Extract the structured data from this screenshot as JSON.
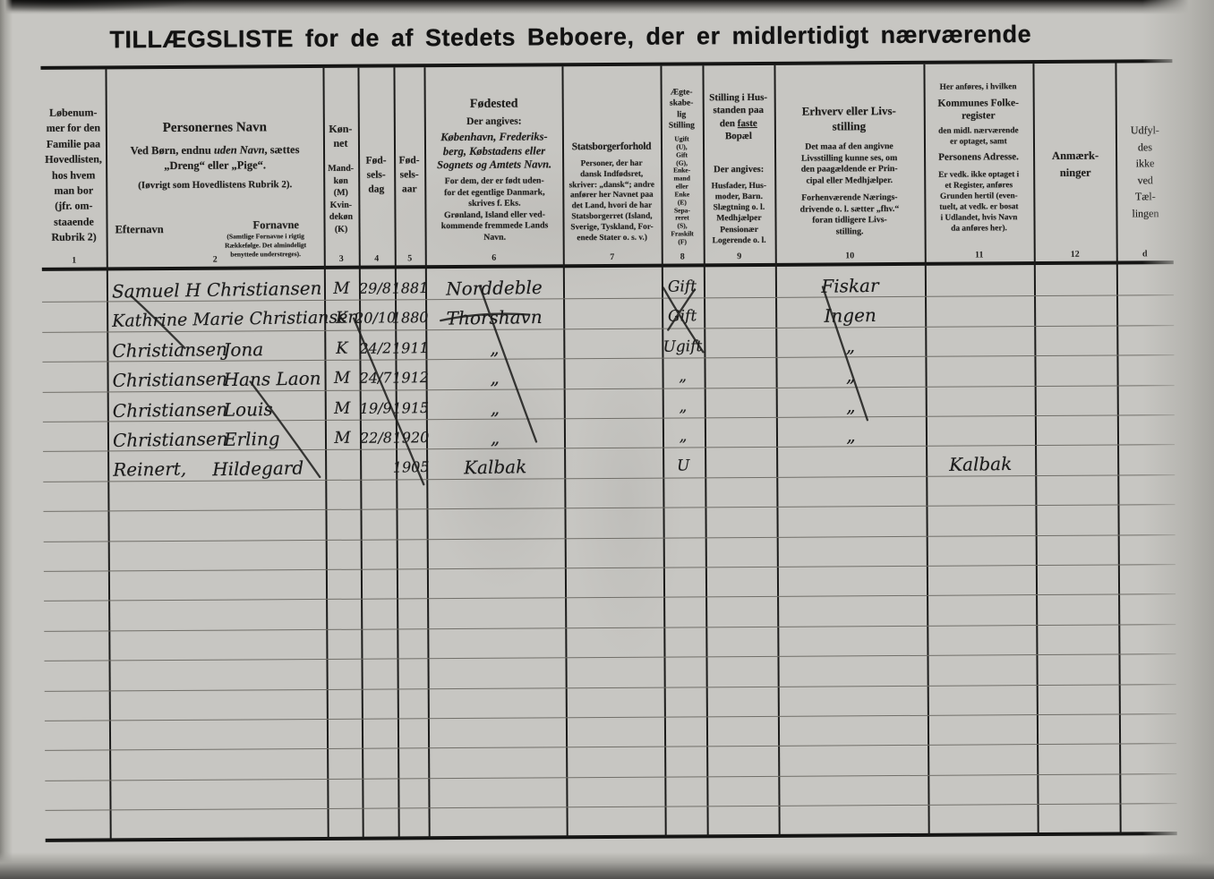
{
  "title": "TILLÆGSLISTE for de af Stedets Beboere, der er midlertidigt nærværende",
  "colors": {
    "paper": "#c7c6c2",
    "ink": "#1c1c1c",
    "line": "#151514"
  },
  "header": {
    "c1": {
      "num": "1",
      "text": "Løbenum-\nmer for den\nFamilie paa\nHovedlisten,\nhos hvem\nman bor\n(jfr. om-\nstaaende\nRubrik 2)"
    },
    "c2": {
      "num": "2",
      "title": "Personernes Navn",
      "l1a": "Ved Børn, endnu ",
      "l1b": "uden Navn",
      "l1c": ", sættes",
      "l2": "„Dreng“ eller „Pige“.",
      "l3": "(Iøvrigt som Hovedlistens Rubrik 2).",
      "efternavn": "Efternavn",
      "fornavne": "Fornavne",
      "fornavne_note": "(Samtlige Fornavne i rigtig\nRækkefølge. Det almindeligt\nbenyttede understreges)."
    },
    "c3": {
      "num": "3",
      "title": "Køn-\nnet",
      "body": "Mand-\nkøn\n(M)\nKvin-\ndekøn\n(K)"
    },
    "c4": {
      "num": "4",
      "title": "Fød-\nsels-\ndag"
    },
    "c5": {
      "num": "5",
      "title": "Fød-\nsels-\naar"
    },
    "c6": {
      "num": "6",
      "title": "Fødested",
      "sub": "Der angives:",
      "em": "København, Frederiks-\nberg, Købstadens eller\nSognets og Amtets Navn.",
      "note": "For dem, der er født uden-\nfor det egentlige Danmark,\nskrives f. Eks.\nGrønland, Island eller ved-\nkommende fremmede Lands\nNavn."
    },
    "c7": {
      "num": "7",
      "title": "Statsborgerforhold",
      "body": "Personer, der har\ndansk Indfødsret,\nskriver: „dansk“; andre\nanfører her Navnet paa\ndet Land, hvori de har\nStatsborgerret (Island,\nSverige, Tyskland, For-\nenede Stater o. s. v.)"
    },
    "c8": {
      "num": "8",
      "title": "Ægte-\nskabe-\nlig\nStilling",
      "body": "Ugift\n(U),\nGift\n(G),\nEnke-\nmand\neller\nEnke\n(E)\nSepa-\nreret\n(S),\nFraskilt\n(F)"
    },
    "c9": {
      "num": "9",
      "t1": "Stilling i Hus-",
      "t2": "standen paa",
      "t3a": "den ",
      "t3b": "faste",
      "t4": "Bopæl",
      "sub": "Der angives:",
      "body": "Husfader, Hus-\nmoder, Barn.\nSlægtning o. l.\nMedhjælper\nPensionær\nLogerende o. l."
    },
    "c10": {
      "num": "10",
      "title": "Erhverv eller Livs-\nstilling",
      "p1": "Det maa af den angivne\nLivsstilling kunne ses, om\nden paagældende er Prin-\ncipal eller Medhjælper.",
      "p2": "Forhenværende Nærings-\ndrivende o. l. sætter „fhv.“\nforan tidligere Livs-\nstilling."
    },
    "c11": {
      "num": "11",
      "pre": "Her anføres, i hvilken",
      "t1": "Kommunes Folke-\nregister",
      "p1": "den midl. nærværende\ner optaget, samt",
      "t2": "Personens Adresse.",
      "p2": "Er vedk. ikke optaget i\net Register, anføres\nGrunden hertil (even-\ntuelt, at vedk. er bosat\ni Udlandet, hvis Navn\nda anføres her)."
    },
    "c12": {
      "num": "12",
      "title": "Anmærk-\nninger"
    },
    "c13": {
      "num": "d",
      "title": "Udfyl-\ndes\nikke\nved\nTæl-\nlingen"
    }
  },
  "rows": [
    {
      "name1": "Samuel H Christiansen",
      "name2": "",
      "sex": "M",
      "day": "29/8",
      "year": "1881",
      "place": "Norddeble",
      "marital": "Gift",
      "occupation": "Fiskar",
      "register": ""
    },
    {
      "name1": "Kathrine Marie Christiansen",
      "name2": "",
      "sex": "K",
      "day": "20/10",
      "year": "1880",
      "place": "Thorshavn",
      "marital": "Gift",
      "occupation": "Ingen",
      "register": ""
    },
    {
      "name1": "Christiansen",
      "name2": "Jona",
      "sex": "K",
      "day": "24/2",
      "year": "1911",
      "place": "„",
      "marital": "Ugift",
      "occupation": "„",
      "register": ""
    },
    {
      "name1": "Christiansen",
      "name2": "Hans Laon",
      "sex": "M",
      "day": "24/7",
      "year": "1912",
      "place": "„",
      "marital": "„",
      "occupation": "„",
      "register": ""
    },
    {
      "name1": "Christiansen",
      "name2": "Louis",
      "sex": "M",
      "day": "19/9",
      "year": "1915",
      "place": "„",
      "marital": "„",
      "occupation": "„",
      "register": ""
    },
    {
      "name1": "Christiansen",
      "name2": "Erling",
      "sex": "M",
      "day": "22/8",
      "year": "1920",
      "place": "„",
      "marital": "„",
      "occupation": "„",
      "register": ""
    },
    {
      "name1": "Reinert,",
      "name2": "Hildegard",
      "sex": "",
      "day": "",
      "year": "1905",
      "place": "Kalbak",
      "marital": "U",
      "occupation": "",
      "register": "Kalbak"
    }
  ]
}
